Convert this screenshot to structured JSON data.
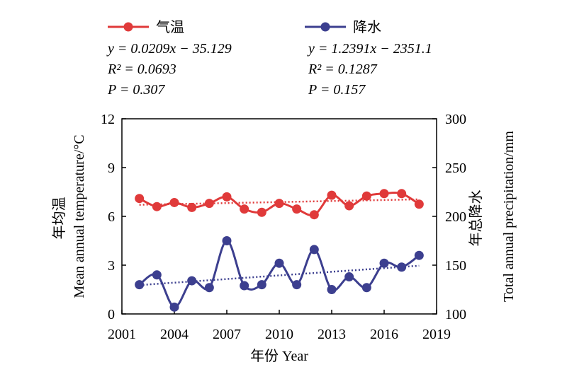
{
  "chart_data": {
    "type": "line",
    "x": [
      2002,
      2003,
      2004,
      2005,
      2006,
      2007,
      2008,
      2009,
      2010,
      2011,
      2012,
      2013,
      2014,
      2015,
      2016,
      2017,
      2018
    ],
    "xlabel": "年份 Year",
    "xlim": [
      2001,
      2019
    ],
    "xticks": [
      2001,
      2004,
      2007,
      2010,
      2013,
      2016,
      2019
    ],
    "ylabel_left": "年均温 Mean annual temperature/°C",
    "ylabel_left_cn": "年均温",
    "ylabel_left_en": "Mean annual temperature/°C",
    "ylim_left": [
      0,
      12
    ],
    "yticks_left": [
      0,
      3,
      6,
      9,
      12
    ],
    "ylabel_right": "年总降水 Total annual precipitation/mm",
    "ylabel_right_cn": "年总降水",
    "ylabel_right_en": "Total annual precipitation/mm",
    "ylim_right": [
      100,
      300
    ],
    "yticks_right": [
      100,
      150,
      200,
      250,
      300
    ],
    "series": [
      {
        "name": "气温",
        "axis": "left",
        "color": "#e03a3a",
        "values": [
          7.1,
          6.6,
          6.85,
          6.55,
          6.8,
          7.2,
          6.45,
          6.25,
          6.8,
          6.45,
          6.1,
          7.3,
          6.65,
          7.25,
          7.4,
          7.4,
          6.75
        ],
        "trend": {
          "slope": 0.0209,
          "intercept": -35.129
        },
        "eq_text": "y = 0.0209x − 35.129",
        "r2_text": "R² = 0.0693",
        "p_text": "P = 0.307"
      },
      {
        "name": "降水",
        "axis": "right",
        "color": "#3c3f8f",
        "values": [
          130,
          140,
          107,
          134,
          127,
          175,
          129,
          130,
          152,
          130,
          166,
          125,
          138,
          127,
          152,
          148,
          160
        ],
        "trend": {
          "slope": 1.2391,
          "intercept": -2351.1
        },
        "eq_text": "y = 1.2391x − 2351.1",
        "r2_text": "R² = 0.1287",
        "p_text": "P = 0.157"
      }
    ],
    "grid": false,
    "legend": "top"
  }
}
